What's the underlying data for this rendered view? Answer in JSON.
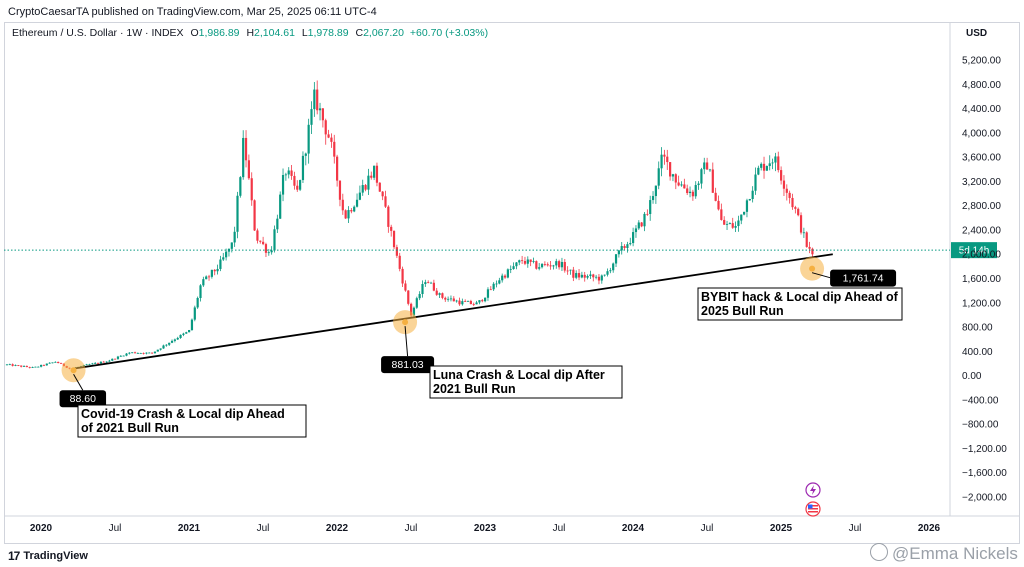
{
  "publisher": "CryptoCaesarTA published on TradingView.com, Mar 25, 2025 06:11 UTC-4",
  "legend": {
    "symbol": "Ethereum / U.S. Dollar · 1W · INDEX",
    "o_key": "O",
    "open": "1,986.89",
    "h_key": "H",
    "high": "2,104.61",
    "l_key": "L",
    "low": "1,978.89",
    "c_key": "C",
    "close": "2,067.20",
    "change": "+60.70 (+3.03%)"
  },
  "currency": "USD",
  "price_tag": "5d 14h",
  "brand": "TradingView",
  "watermark": "@Emma Nickels",
  "colors": {
    "up": "#089981",
    "down": "#f23645",
    "trendline": "#000000",
    "marker": "#f5b041"
  },
  "chart_data": {
    "type": "candlestick",
    "y_ticks": [
      "5,200.00",
      "4,800.00",
      "4,400.00",
      "4,000.00",
      "3,600.00",
      "3,200.00",
      "2,800.00",
      "2,400.00",
      "2,000.00",
      "1,600.00",
      "1,200.00",
      "800.00",
      "400.00",
      "0.00",
      "−400.00",
      "−800.00",
      "−1,200.00",
      "−1,600.00",
      "−2,000.00"
    ],
    "y_tick_values": [
      5200,
      4800,
      4400,
      4000,
      3600,
      3200,
      2800,
      2400,
      2000,
      1600,
      1200,
      800,
      400,
      0,
      -400,
      -800,
      -1200,
      -1600,
      -2000
    ],
    "ylim": [
      -2200,
      5500
    ],
    "x_ticks": [
      {
        "label": "2020",
        "t": 2020.0,
        "bold": true
      },
      {
        "label": "Jul",
        "t": 2020.5,
        "bold": false
      },
      {
        "label": "2021",
        "t": 2021.0,
        "bold": true
      },
      {
        "label": "Jul",
        "t": 2021.5,
        "bold": false
      },
      {
        "label": "2022",
        "t": 2022.0,
        "bold": true
      },
      {
        "label": "Jul",
        "t": 2022.5,
        "bold": false
      },
      {
        "label": "2023",
        "t": 2023.0,
        "bold": true
      },
      {
        "label": "Jul",
        "t": 2023.5,
        "bold": false
      },
      {
        "label": "2024",
        "t": 2024.0,
        "bold": true
      },
      {
        "label": "Jul",
        "t": 2024.5,
        "bold": false
      },
      {
        "label": "2025",
        "t": 2025.0,
        "bold": true
      },
      {
        "label": "Jul",
        "t": 2025.5,
        "bold": false
      },
      {
        "label": "2026",
        "t": 2026.0,
        "bold": true
      }
    ],
    "price_keypoints": [
      [
        2019.77,
        180
      ],
      [
        2019.95,
        130
      ],
      [
        2020.1,
        230
      ],
      [
        2020.2,
        110
      ],
      [
        2020.3,
        170
      ],
      [
        2020.45,
        240
      ],
      [
        2020.6,
        380
      ],
      [
        2020.75,
        370
      ],
      [
        2020.9,
        600
      ],
      [
        2021.0,
        730
      ],
      [
        2021.08,
        1500
      ],
      [
        2021.2,
        1800
      ],
      [
        2021.3,
        2200
      ],
      [
        2021.37,
        3900
      ],
      [
        2021.45,
        2300
      ],
      [
        2021.55,
        2000
      ],
      [
        2021.65,
        3400
      ],
      [
        2021.73,
        3000
      ],
      [
        2021.85,
        4600
      ],
      [
        2021.95,
        3900
      ],
      [
        2022.05,
        2600
      ],
      [
        2022.15,
        3000
      ],
      [
        2022.25,
        3400
      ],
      [
        2022.35,
        2500
      ],
      [
        2022.45,
        1500
      ],
      [
        2022.5,
        1000
      ],
      [
        2022.6,
        1600
      ],
      [
        2022.7,
        1300
      ],
      [
        2022.85,
        1200
      ],
      [
        2022.95,
        1180
      ],
      [
        2023.1,
        1600
      ],
      [
        2023.25,
        1900
      ],
      [
        2023.35,
        1800
      ],
      [
        2023.5,
        1850
      ],
      [
        2023.6,
        1650
      ],
      [
        2023.8,
        1600
      ],
      [
        2023.9,
        2000
      ],
      [
        2024.0,
        2300
      ],
      [
        2024.1,
        2700
      ],
      [
        2024.2,
        3600
      ],
      [
        2024.3,
        3200
      ],
      [
        2024.4,
        3000
      ],
      [
        2024.5,
        3500
      ],
      [
        2024.6,
        2500
      ],
      [
        2024.7,
        2450
      ],
      [
        2024.85,
        3400
      ],
      [
        2024.95,
        3600
      ],
      [
        2025.0,
        3300
      ],
      [
        2025.1,
        2700
      ],
      [
        2025.18,
        2100
      ],
      [
        2025.22,
        1950
      ],
      [
        2025.23,
        2070
      ]
    ],
    "trendline": [
      [
        2020.22,
        115
      ],
      [
        2025.35,
        2000
      ]
    ],
    "annotations": [
      {
        "label": "88.60",
        "t": 2020.22,
        "v": 88.6,
        "title": "Covid-19 Crash & Local dip Ahead of 2021 Bull Run"
      },
      {
        "label": "881.03",
        "t": 2022.46,
        "v": 881.03,
        "title": "Luna Crash & Local dip After 2021 Bull Run"
      },
      {
        "label": "1,761.74",
        "t": 2025.21,
        "v": 1761.74,
        "title": "BYBIT hack & Local dip Ahead of 2025 Bull Run"
      }
    ],
    "current_price": 2067.2
  }
}
